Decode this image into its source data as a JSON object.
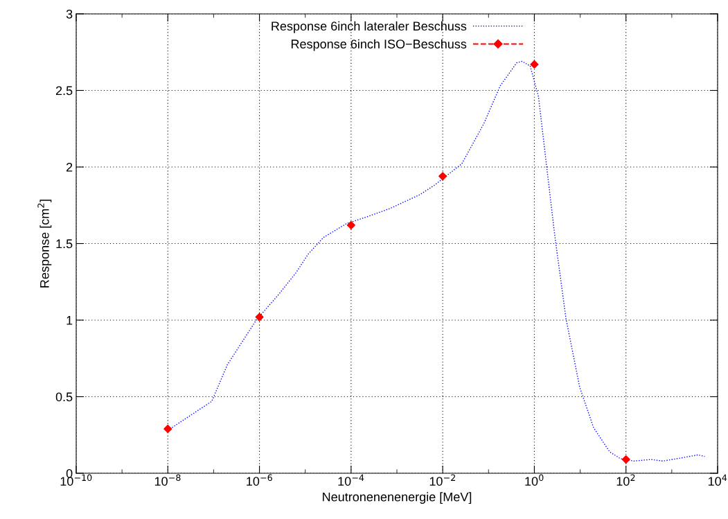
{
  "chart_data": {
    "type": "line",
    "xlabel": "Neutronenenenergie [MeV]",
    "ylabel": "Response [cm$^{2}$]",
    "log": "x",
    "grid": true,
    "legend": "top",
    "xlim": [
      1e-10,
      10000
    ],
    "ylim": [
      0,
      3
    ],
    "xticks": [
      {
        "value": 1e-10,
        "label": "10$^{−10}$"
      },
      {
        "value": 1e-09,
        "label": null
      },
      {
        "value": 1e-08,
        "label": "10$^{−8}$"
      },
      {
        "value": 1e-07,
        "label": null
      },
      {
        "value": 1e-06,
        "label": "10$^{−6}$"
      },
      {
        "value": 1e-05,
        "label": null
      },
      {
        "value": 0.0001,
        "label": "10$^{−4}$"
      },
      {
        "value": 0.001,
        "label": null
      },
      {
        "value": 0.01,
        "label": "10$^{−2}$"
      },
      {
        "value": 0.1,
        "label": null
      },
      {
        "value": 1,
        "label": "10$^{0}$"
      },
      {
        "value": 10,
        "label": null
      },
      {
        "value": 100,
        "label": "10$^{2}$"
      },
      {
        "value": 1000,
        "label": null
      },
      {
        "value": 10000,
        "label": "10$^{4}$"
      }
    ],
    "yticks": [
      0,
      0.5,
      1,
      1.5,
      2,
      2.5,
      3
    ],
    "series": [
      {
        "name": "Response 6inch lateraler Beschuss",
        "color": "#0000ff",
        "line_style": "dotted",
        "marker": "none",
        "x": [
          1e-08,
          9.1e-08,
          2e-07,
          8.5e-07,
          2.5e-06,
          6.3e-06,
          1.15e-05,
          2.5e-05,
          7.9e-05,
          0.0002,
          0.00072,
          0.0032,
          0.0065,
          0.026,
          0.078,
          0.18,
          0.41,
          0.54,
          0.81,
          1.23,
          1.86,
          2.8,
          4.9,
          9.8,
          19.5,
          44,
          76,
          151,
          347,
          646,
          1585,
          3715,
          5250
        ],
        "values": [
          0.28,
          0.47,
          0.71,
          1.0,
          1.16,
          1.31,
          1.43,
          1.54,
          1.63,
          1.67,
          1.73,
          1.82,
          1.88,
          2.02,
          2.28,
          2.53,
          2.68,
          2.69,
          2.66,
          2.46,
          2.0,
          1.55,
          1.01,
          0.56,
          0.3,
          0.14,
          0.095,
          0.08,
          0.09,
          0.08,
          0.1,
          0.12,
          0.11
        ]
      },
      {
        "name": "Response 6inch ISO−Beschuss",
        "type": "scatter",
        "color": "#ff0000",
        "marker": "diamond",
        "x": [
          1e-08,
          1e-06,
          0.0001,
          0.01,
          1,
          100
        ],
        "values": [
          0.29,
          1.02,
          1.62,
          1.94,
          2.67,
          0.09
        ]
      }
    ]
  }
}
